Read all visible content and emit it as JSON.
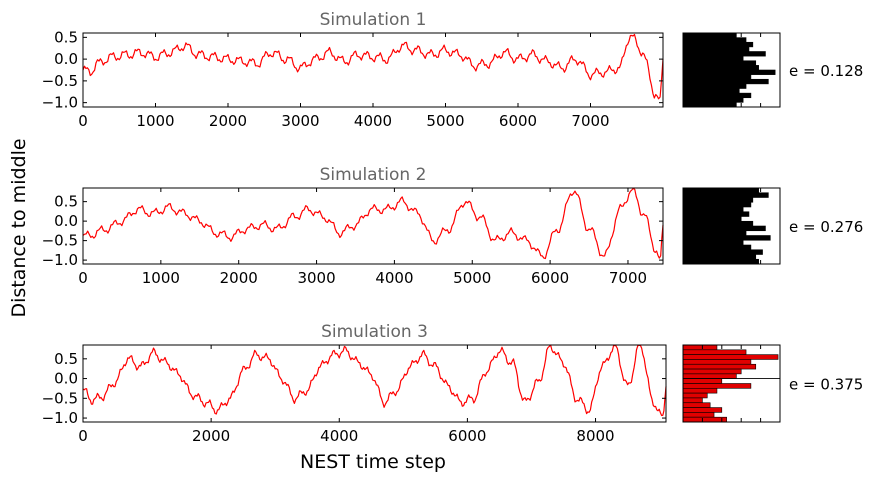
{
  "colors": {
    "line": "#ff0000",
    "title": "#666666",
    "hist_black": "#000000",
    "hist_red": "#e00000"
  },
  "ylabel": "Distance to middle",
  "xlabel": "NEST time step",
  "chart_data": [
    {
      "type": "line",
      "title": "Simulation 1",
      "xlim": [
        0,
        8000
      ],
      "ylim": [
        -1.1,
        0.6
      ],
      "xticks": [
        0,
        1000,
        2000,
        3000,
        4000,
        5000,
        6000,
        7000
      ],
      "yticks": [
        0.5,
        0.0,
        -0.5,
        -1.0
      ],
      "yticklabels": [
        "0.5",
        "0.0",
        "−0.5",
        "−1.0"
      ],
      "x": [
        0,
        100,
        200,
        400,
        600,
        800,
        1000,
        1200,
        1400,
        1600,
        1800,
        2000,
        2200,
        2400,
        2600,
        2800,
        3000,
        3200,
        3400,
        3600,
        3800,
        4000,
        4200,
        4400,
        4600,
        4800,
        5000,
        5200,
        5400,
        5600,
        5800,
        6000,
        6200,
        6400,
        6600,
        6800,
        7000,
        7200,
        7400,
        7550,
        7700,
        7900,
        7960,
        8000
      ],
      "y": [
        -0.25,
        -0.3,
        -0.1,
        0.05,
        0.1,
        0.15,
        0.05,
        0.15,
        0.3,
        0.1,
        0.05,
        0.0,
        -0.05,
        -0.1,
        0.15,
        0.0,
        -0.2,
        0.0,
        0.15,
        -0.05,
        0.1,
        0.05,
        0.0,
        0.3,
        0.2,
        0.1,
        0.2,
        0.1,
        -0.15,
        -0.1,
        0.15,
        0.0,
        0.1,
        -0.05,
        -0.2,
        0.0,
        -0.35,
        -0.3,
        -0.2,
        0.55,
        0.2,
        -0.8,
        -1.0,
        0.0
      ],
      "hist_color": "hist_black",
      "hist_values": [
        0.55,
        0.65,
        0.72,
        0.68,
        0.85,
        0.62,
        0.75,
        0.78,
        0.95,
        0.7,
        0.88,
        0.65,
        0.58,
        0.7,
        0.62,
        0.55
      ],
      "annotation": "e = 0.128"
    },
    {
      "type": "line",
      "title": "Simulation 2",
      "xlim": [
        0,
        7450
      ],
      "ylim": [
        -1.1,
        0.85
      ],
      "xticks": [
        0,
        1000,
        2000,
        3000,
        4000,
        5000,
        6000,
        7000
      ],
      "yticks": [
        0.5,
        0.0,
        -0.5,
        -1.0
      ],
      "yticklabels": [
        "0.5",
        "0.0",
        "−0.5",
        "−1.0"
      ],
      "x": [
        0,
        100,
        300,
        500,
        700,
        900,
        1100,
        1300,
        1500,
        1700,
        1900,
        2100,
        2300,
        2500,
        2700,
        2900,
        3100,
        3300,
        3500,
        3700,
        3900,
        4100,
        4300,
        4500,
        4700,
        4900,
        5100,
        5300,
        5500,
        5700,
        5900,
        6100,
        6300,
        6500,
        6700,
        6900,
        7050,
        7200,
        7350,
        7420,
        7450
      ],
      "y": [
        -0.4,
        -0.35,
        -0.2,
        0.0,
        0.3,
        0.2,
        0.35,
        0.2,
        0.0,
        -0.3,
        -0.4,
        -0.2,
        -0.1,
        -0.2,
        0.1,
        0.3,
        0.1,
        -0.3,
        -0.1,
        0.3,
        0.3,
        0.5,
        0.2,
        -0.5,
        -0.2,
        0.5,
        0.1,
        -0.5,
        -0.3,
        -0.5,
        -0.9,
        -0.2,
        0.8,
        -0.2,
        -0.9,
        0.3,
        0.8,
        0.2,
        -0.7,
        -1.0,
        -0.1
      ],
      "hist_color": "hist_black",
      "hist_values": [
        0.78,
        0.88,
        0.72,
        0.7,
        0.62,
        0.68,
        0.6,
        0.72,
        0.85,
        0.65,
        0.9,
        0.62,
        0.7,
        0.82,
        0.75,
        0.78
      ],
      "annotation": "e = 0.276"
    },
    {
      "type": "line",
      "title": "Simulation 3",
      "xlim": [
        0,
        9100
      ],
      "ylim": [
        -1.1,
        0.85
      ],
      "xticks": [
        0,
        2000,
        4000,
        6000,
        8000
      ],
      "yticks": [
        0.5,
        0.0,
        -0.5,
        -1.0
      ],
      "yticklabels": [
        "0.5",
        "0.0",
        "−0.5",
        "−1.0"
      ],
      "x": [
        0,
        150,
        300,
        500,
        700,
        900,
        1100,
        1300,
        1500,
        1700,
        1900,
        2100,
        2300,
        2500,
        2700,
        2900,
        3100,
        3300,
        3500,
        3700,
        3900,
        4100,
        4300,
        4500,
        4700,
        4900,
        5100,
        5300,
        5500,
        5700,
        5900,
        6100,
        6300,
        6500,
        6700,
        6900,
        7100,
        7300,
        7500,
        7700,
        7900,
        8100,
        8300,
        8500,
        8700,
        8900,
        9050,
        9100
      ],
      "y": [
        -0.3,
        -0.55,
        -0.45,
        -0.1,
        0.5,
        0.3,
        0.65,
        0.4,
        0.1,
        -0.4,
        -0.6,
        -0.8,
        -0.5,
        0.2,
        0.6,
        0.5,
        0.0,
        -0.5,
        -0.3,
        0.3,
        0.6,
        0.7,
        0.4,
        0.1,
        -0.6,
        -0.3,
        0.3,
        0.6,
        0.3,
        -0.2,
        -0.6,
        -0.5,
        0.2,
        0.7,
        0.4,
        -0.6,
        -0.1,
        0.8,
        0.4,
        -0.5,
        -0.8,
        0.3,
        0.8,
        -0.2,
        0.85,
        -0.6,
        -1.0,
        -0.2
      ],
      "hist_color": "hist_red",
      "hist_values": [
        0.35,
        0.65,
        0.98,
        0.7,
        0.75,
        0.6,
        0.55,
        0.4,
        0.7,
        0.35,
        0.25,
        0.2,
        0.28,
        0.4,
        0.32,
        0.45
      ],
      "annotation": "e = 0.375"
    }
  ]
}
